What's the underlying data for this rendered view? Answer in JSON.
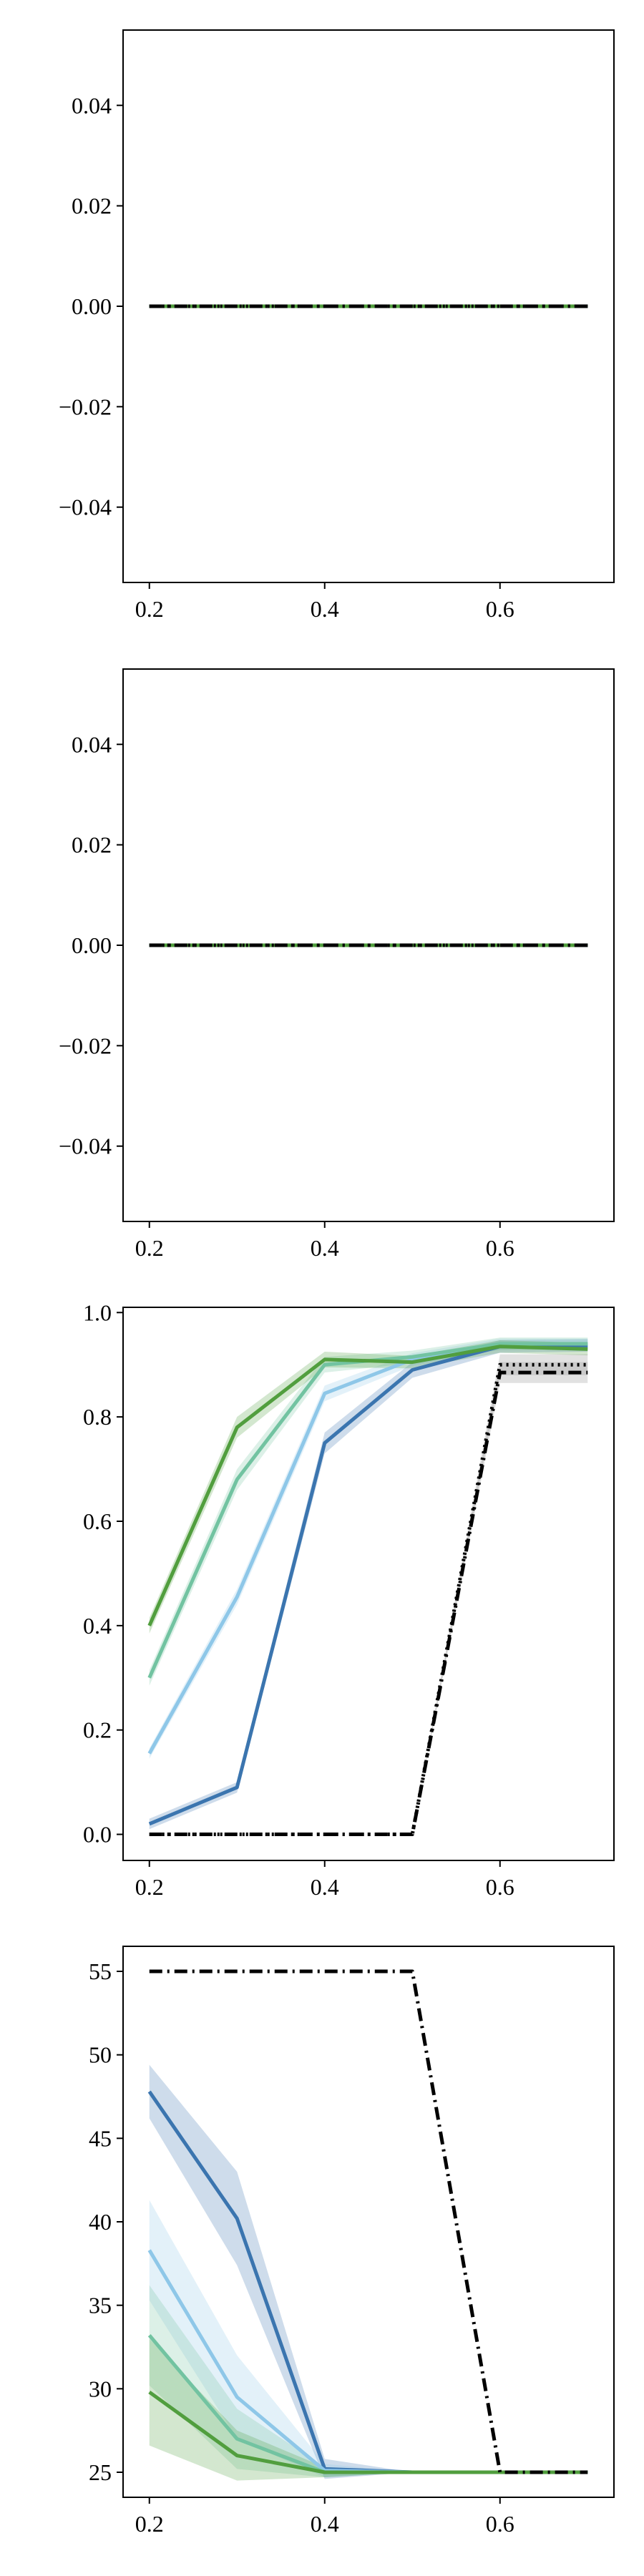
{
  "chart_data": [
    {
      "type": "line",
      "x": [
        0.2,
        0.3,
        0.4,
        0.5,
        0.6,
        0.7
      ],
      "xlim": [
        0.17,
        0.73
      ],
      "ylim": [
        -0.055,
        0.055
      ],
      "xticks": [
        0.2,
        0.4,
        0.6
      ],
      "xtick_labels": [
        "0.2",
        "0.4",
        "0.6"
      ],
      "yticks": [
        -0.04,
        -0.02,
        0.0,
        0.02,
        0.04
      ],
      "ytick_labels": [
        "−0.04",
        "−0.02",
        "0.00",
        "0.02",
        "0.04"
      ],
      "grid": false,
      "series": [
        {
          "color": "#3b75af",
          "style": "solid",
          "values": [
            0,
            0,
            0,
            0,
            0,
            0
          ]
        },
        {
          "color": "#8ec7e8",
          "style": "solid",
          "values": [
            0,
            0,
            0,
            0,
            0,
            0
          ]
        },
        {
          "color": "#72c3a1",
          "style": "solid",
          "values": [
            0,
            0,
            0,
            0,
            0,
            0
          ]
        },
        {
          "color": "#519e3e",
          "style": "solid",
          "values": [
            0,
            0,
            0,
            0,
            0,
            0
          ]
        },
        {
          "color": "#000000",
          "style": "dotted",
          "values": [
            0,
            0,
            0,
            0,
            0,
            0
          ]
        },
        {
          "color": "#000000",
          "style": "dashdot",
          "values": [
            0,
            0,
            0,
            0,
            0,
            0
          ]
        }
      ]
    },
    {
      "type": "line",
      "x": [
        0.2,
        0.3,
        0.4,
        0.5,
        0.6,
        0.7
      ],
      "xlim": [
        0.17,
        0.73
      ],
      "ylim": [
        -0.055,
        0.055
      ],
      "xticks": [
        0.2,
        0.4,
        0.6
      ],
      "xtick_labels": [
        "0.2",
        "0.4",
        "0.6"
      ],
      "yticks": [
        -0.04,
        -0.02,
        0.0,
        0.02,
        0.04
      ],
      "ytick_labels": [
        "−0.04",
        "−0.02",
        "0.00",
        "0.02",
        "0.04"
      ],
      "grid": false,
      "series": [
        {
          "color": "#3b75af",
          "style": "solid",
          "values": [
            0,
            0,
            0,
            0,
            0,
            0
          ]
        },
        {
          "color": "#8ec7e8",
          "style": "solid",
          "values": [
            0,
            0,
            0,
            0,
            0,
            0
          ]
        },
        {
          "color": "#72c3a1",
          "style": "solid",
          "values": [
            0,
            0,
            0,
            0,
            0,
            0
          ]
        },
        {
          "color": "#519e3e",
          "style": "solid",
          "values": [
            0,
            0,
            0,
            0,
            0,
            0
          ]
        },
        {
          "color": "#000000",
          "style": "dotted",
          "values": [
            0,
            0,
            0,
            0,
            0,
            0
          ]
        },
        {
          "color": "#000000",
          "style": "dashdot",
          "values": [
            0,
            0,
            0,
            0,
            0,
            0
          ]
        }
      ]
    },
    {
      "type": "line",
      "x": [
        0.2,
        0.3,
        0.4,
        0.5,
        0.6,
        0.7
      ],
      "xlim": [
        0.17,
        0.73
      ],
      "ylim": [
        -0.05,
        1.01
      ],
      "xticks": [
        0.2,
        0.4,
        0.6
      ],
      "xtick_labels": [
        "0.2",
        "0.4",
        "0.6"
      ],
      "yticks": [
        0.0,
        0.2,
        0.4,
        0.6,
        0.8,
        1.0
      ],
      "ytick_labels": [
        "0.0",
        "0.2",
        "0.4",
        "0.6",
        "0.8",
        "1.0"
      ],
      "grid": false,
      "series": [
        {
          "color": "#3b75af",
          "style": "solid",
          "values": [
            0.02,
            0.09,
            0.75,
            0.89,
            0.935,
            0.937
          ],
          "band": [
            0.01,
            0.01,
            0.02,
            0.015,
            0.012,
            0.012
          ]
        },
        {
          "color": "#8ec7e8",
          "style": "solid",
          "values": [
            0.155,
            0.455,
            0.845,
            0.91,
            0.94,
            0.94
          ],
          "band": [
            0.01,
            0.015,
            0.015,
            0.012,
            0.01,
            0.01
          ]
        },
        {
          "color": "#72c3a1",
          "style": "solid",
          "values": [
            0.3,
            0.68,
            0.9,
            0.915,
            0.94,
            0.94
          ],
          "band": [
            0.015,
            0.02,
            0.015,
            0.012,
            0.012,
            0.012
          ]
        },
        {
          "color": "#519e3e",
          "style": "solid",
          "values": [
            0.4,
            0.78,
            0.91,
            0.905,
            0.935,
            0.93
          ],
          "band": [
            0.015,
            0.02,
            0.015,
            0.012,
            0.012,
            0.012
          ]
        },
        {
          "color": "#000000",
          "style": "dotted",
          "values": [
            0.0,
            0.0,
            0.0,
            0.0,
            0.9,
            0.9
          ],
          "band": [
            0,
            0,
            0,
            0,
            0.02,
            0.02
          ]
        },
        {
          "color": "#000000",
          "style": "dashdot",
          "values": [
            0.0,
            0.0,
            0.0,
            0.0,
            0.885,
            0.885
          ],
          "band": [
            0,
            0,
            0,
            0,
            0.02,
            0.02
          ]
        }
      ]
    },
    {
      "type": "line",
      "x": [
        0.2,
        0.3,
        0.4,
        0.5,
        0.6,
        0.7
      ],
      "xlim": [
        0.17,
        0.73
      ],
      "ylim": [
        23.5,
        56.5
      ],
      "xticks": [
        0.2,
        0.4,
        0.6
      ],
      "xtick_labels": [
        "0.2",
        "0.4",
        "0.6"
      ],
      "yticks": [
        25,
        30,
        35,
        40,
        45,
        50,
        55
      ],
      "ytick_labels": [
        "25",
        "30",
        "35",
        "40",
        "45",
        "50",
        "55"
      ],
      "grid": false,
      "series": [
        {
          "color": "#3b75af",
          "style": "solid",
          "values": [
            47.8,
            40.2,
            25.2,
            25.0,
            25.0,
            25.0
          ],
          "band": [
            1.6,
            2.8,
            0.6,
            0,
            0,
            0
          ]
        },
        {
          "color": "#8ec7e8",
          "style": "solid",
          "values": [
            38.3,
            29.5,
            25.1,
            25.0,
            25.0,
            25.0
          ],
          "band": [
            3.0,
            2.5,
            0.4,
            0,
            0,
            0
          ]
        },
        {
          "color": "#72c3a1",
          "style": "solid",
          "values": [
            33.2,
            27.0,
            25.0,
            25.0,
            25.0,
            25.0
          ],
          "band": [
            3.0,
            1.8,
            0.3,
            0,
            0,
            0
          ]
        },
        {
          "color": "#519e3e",
          "style": "solid",
          "values": [
            29.8,
            26.0,
            25.0,
            25.0,
            25.0,
            25.0
          ],
          "band": [
            3.2,
            1.5,
            0.3,
            0,
            0,
            0
          ]
        },
        {
          "color": "#000000",
          "style": "dashdot",
          "values": [
            55.0,
            55.0,
            55.0,
            55.0,
            25.0,
            25.0
          ],
          "band": [
            0,
            0,
            0,
            0,
            0,
            0
          ]
        }
      ]
    }
  ]
}
